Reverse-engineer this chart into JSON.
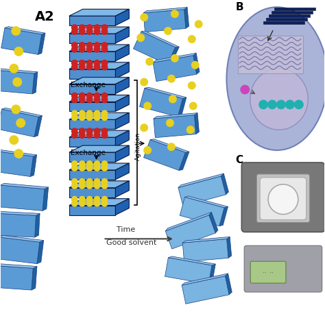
{
  "panel_A2_label": "A2",
  "panel_B_label": "B",
  "panel_C_label": "C",
  "exchange_text": "Exchange",
  "agitation_text": "Agitation",
  "time_text": "Time",
  "good_solvent_text": "Good solvent",
  "bg_color": "#ffffff",
  "blue_sheet_face": "#5b9bd5",
  "blue_sheet_light": "#7ab4e0",
  "blue_sheet_top": "#90c0e8",
  "blue_sheet_side": "#2060a0",
  "red_ball_color": "#cc2222",
  "yellow_ball_color": "#e8d020",
  "teal_ball_color": "#20b0b0",
  "pink_ball_color": "#cc44bb",
  "dark_blue_stack": "#0a2060",
  "circle_bg": "#aab4d8",
  "circle_inner_bg": "#c0b8d8",
  "wavy_rect_bg": "#c8c0d8",
  "machine_gray": "#787878",
  "machine_gray2": "#a0a0a8"
}
